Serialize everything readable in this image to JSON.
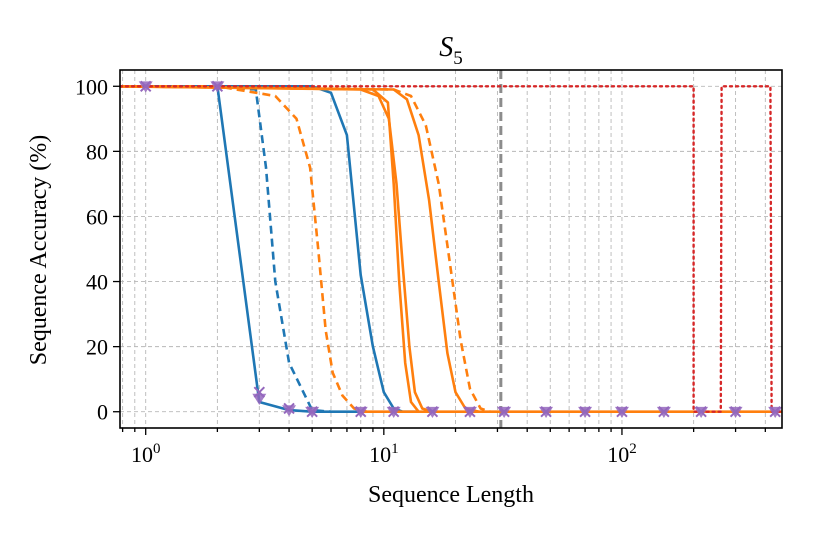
{
  "chart_data": {
    "type": "line",
    "title": "S",
    "title_subscript": "5",
    "xlabel": "Sequence Length",
    "ylabel": "Sequence Accuracy (%)",
    "xscale": "log",
    "xlim": [
      0.78,
      470
    ],
    "ylim": [
      -5,
      105
    ],
    "grid": true,
    "x_ticks": [
      {
        "value": 1,
        "base": "10",
        "exp": "0"
      },
      {
        "value": 10,
        "base": "10",
        "exp": "1"
      },
      {
        "value": 100,
        "base": "10",
        "exp": "2"
      }
    ],
    "y_ticks": [
      {
        "value": 0,
        "label": "0"
      },
      {
        "value": 20,
        "label": "20"
      },
      {
        "value": 40,
        "label": "40"
      },
      {
        "value": 60,
        "label": "60"
      },
      {
        "value": 80,
        "label": "80"
      },
      {
        "value": 100,
        "label": "100"
      }
    ],
    "vline": {
      "x": 31,
      "color": "#8c8c8c",
      "style": "dashed"
    },
    "colors": {
      "blue": "#1f77b4",
      "orange": "#ff7f0e",
      "red": "#d62728",
      "purple": "#9467bd"
    },
    "series": [
      {
        "name": "blue-solid-1",
        "color": "#1f77b4",
        "style": "solid",
        "x": [
          0.78,
          1,
          2,
          3,
          4,
          5,
          6,
          7,
          8
        ],
        "y": [
          100,
          100,
          100,
          3,
          0.5,
          0,
          0,
          0,
          0
        ]
      },
      {
        "name": "blue-solid-2",
        "color": "#1f77b4",
        "style": "solid",
        "x": [
          0.78,
          5,
          6,
          7,
          8,
          9,
          10,
          11,
          12,
          14
        ],
        "y": [
          100,
          100,
          98,
          85,
          42,
          20,
          6,
          1,
          0,
          0
        ]
      },
      {
        "name": "blue-dashed",
        "color": "#1f77b4",
        "style": "dashed",
        "x": [
          0.78,
          2,
          2.9,
          3.2,
          3.5,
          4,
          5,
          6
        ],
        "y": [
          100,
          100,
          99,
          75,
          40,
          15,
          0.5,
          0
        ]
      },
      {
        "name": "orange-dashed-1",
        "color": "#ff7f0e",
        "style": "dashed",
        "x": [
          0.78,
          2,
          3.5,
          4.3,
          4.9,
          5.3,
          5.7,
          6.1,
          6.7,
          7.5,
          8.5
        ],
        "y": [
          100,
          100,
          97,
          90,
          75,
          50,
          25,
          12,
          5,
          1,
          0
        ]
      },
      {
        "name": "orange-solid-1",
        "color": "#ff7f0e",
        "style": "solid",
        "x": [
          0.78,
          8,
          9.5,
          10.5,
          11.3,
          12,
          12.8,
          13.5,
          14.5,
          16
        ],
        "y": [
          100,
          99,
          97,
          90,
          70,
          45,
          20,
          6,
          1,
          0
        ]
      },
      {
        "name": "orange-solid-2",
        "color": "#ff7f0e",
        "style": "solid",
        "x": [
          0.78,
          9,
          10.4,
          11,
          11.6,
          12.3,
          13,
          14
        ],
        "y": [
          100,
          99,
          95,
          70,
          40,
          15,
          3,
          0
        ]
      },
      {
        "name": "orange-solid-3",
        "color": "#ff7f0e",
        "style": "solid",
        "x": [
          0.78,
          11,
          12.5,
          14,
          15.5,
          17,
          18.5,
          20,
          22,
          25
        ],
        "y": [
          100,
          99,
          96,
          85,
          65,
          40,
          18,
          6,
          1,
          0
        ]
      },
      {
        "name": "orange-dashed-2",
        "color": "#ff7f0e",
        "style": "dashed",
        "x": [
          0.78,
          11,
          13,
          15,
          17,
          19,
          21,
          23,
          25.5,
          28
        ],
        "y": [
          100,
          99,
          97,
          88,
          70,
          45,
          22,
          7,
          1,
          0
        ]
      },
      {
        "name": "orange-flat",
        "color": "#ff7f0e",
        "style": "solid",
        "x": [
          8,
          470
        ],
        "y": [
          0,
          0
        ]
      },
      {
        "name": "red-dotted",
        "color": "#d62728",
        "style": "dotted",
        "x": [
          0.78,
          200,
          200,
          210,
          215,
          260,
          262,
          268,
          275,
          420,
          425,
          470
        ],
        "y": [
          100,
          100,
          0,
          0,
          0,
          0,
          100,
          100,
          100,
          100,
          0,
          0
        ]
      }
    ],
    "marker_series": [
      {
        "name": "purple-triangle-down",
        "marker": "triangle-down",
        "color": "#9467bd",
        "x": [
          1,
          2,
          3,
          4,
          5,
          8,
          11,
          16,
          23,
          32,
          48,
          70,
          100,
          150,
          215,
          300,
          440
        ],
        "y": [
          100,
          100,
          4,
          0.5,
          0,
          0,
          0,
          0,
          0,
          0,
          0,
          0,
          0,
          0,
          0,
          0,
          0
        ]
      },
      {
        "name": "purple-x",
        "marker": "x",
        "color": "#9467bd",
        "x": [
          1,
          2,
          3,
          4,
          5,
          8,
          11,
          16,
          23,
          32,
          48,
          70,
          100,
          150,
          215,
          300,
          440
        ],
        "y": [
          100,
          100,
          6,
          1,
          0,
          0,
          0,
          0,
          0,
          0,
          0,
          0,
          0,
          0,
          0,
          0,
          0
        ]
      }
    ]
  }
}
